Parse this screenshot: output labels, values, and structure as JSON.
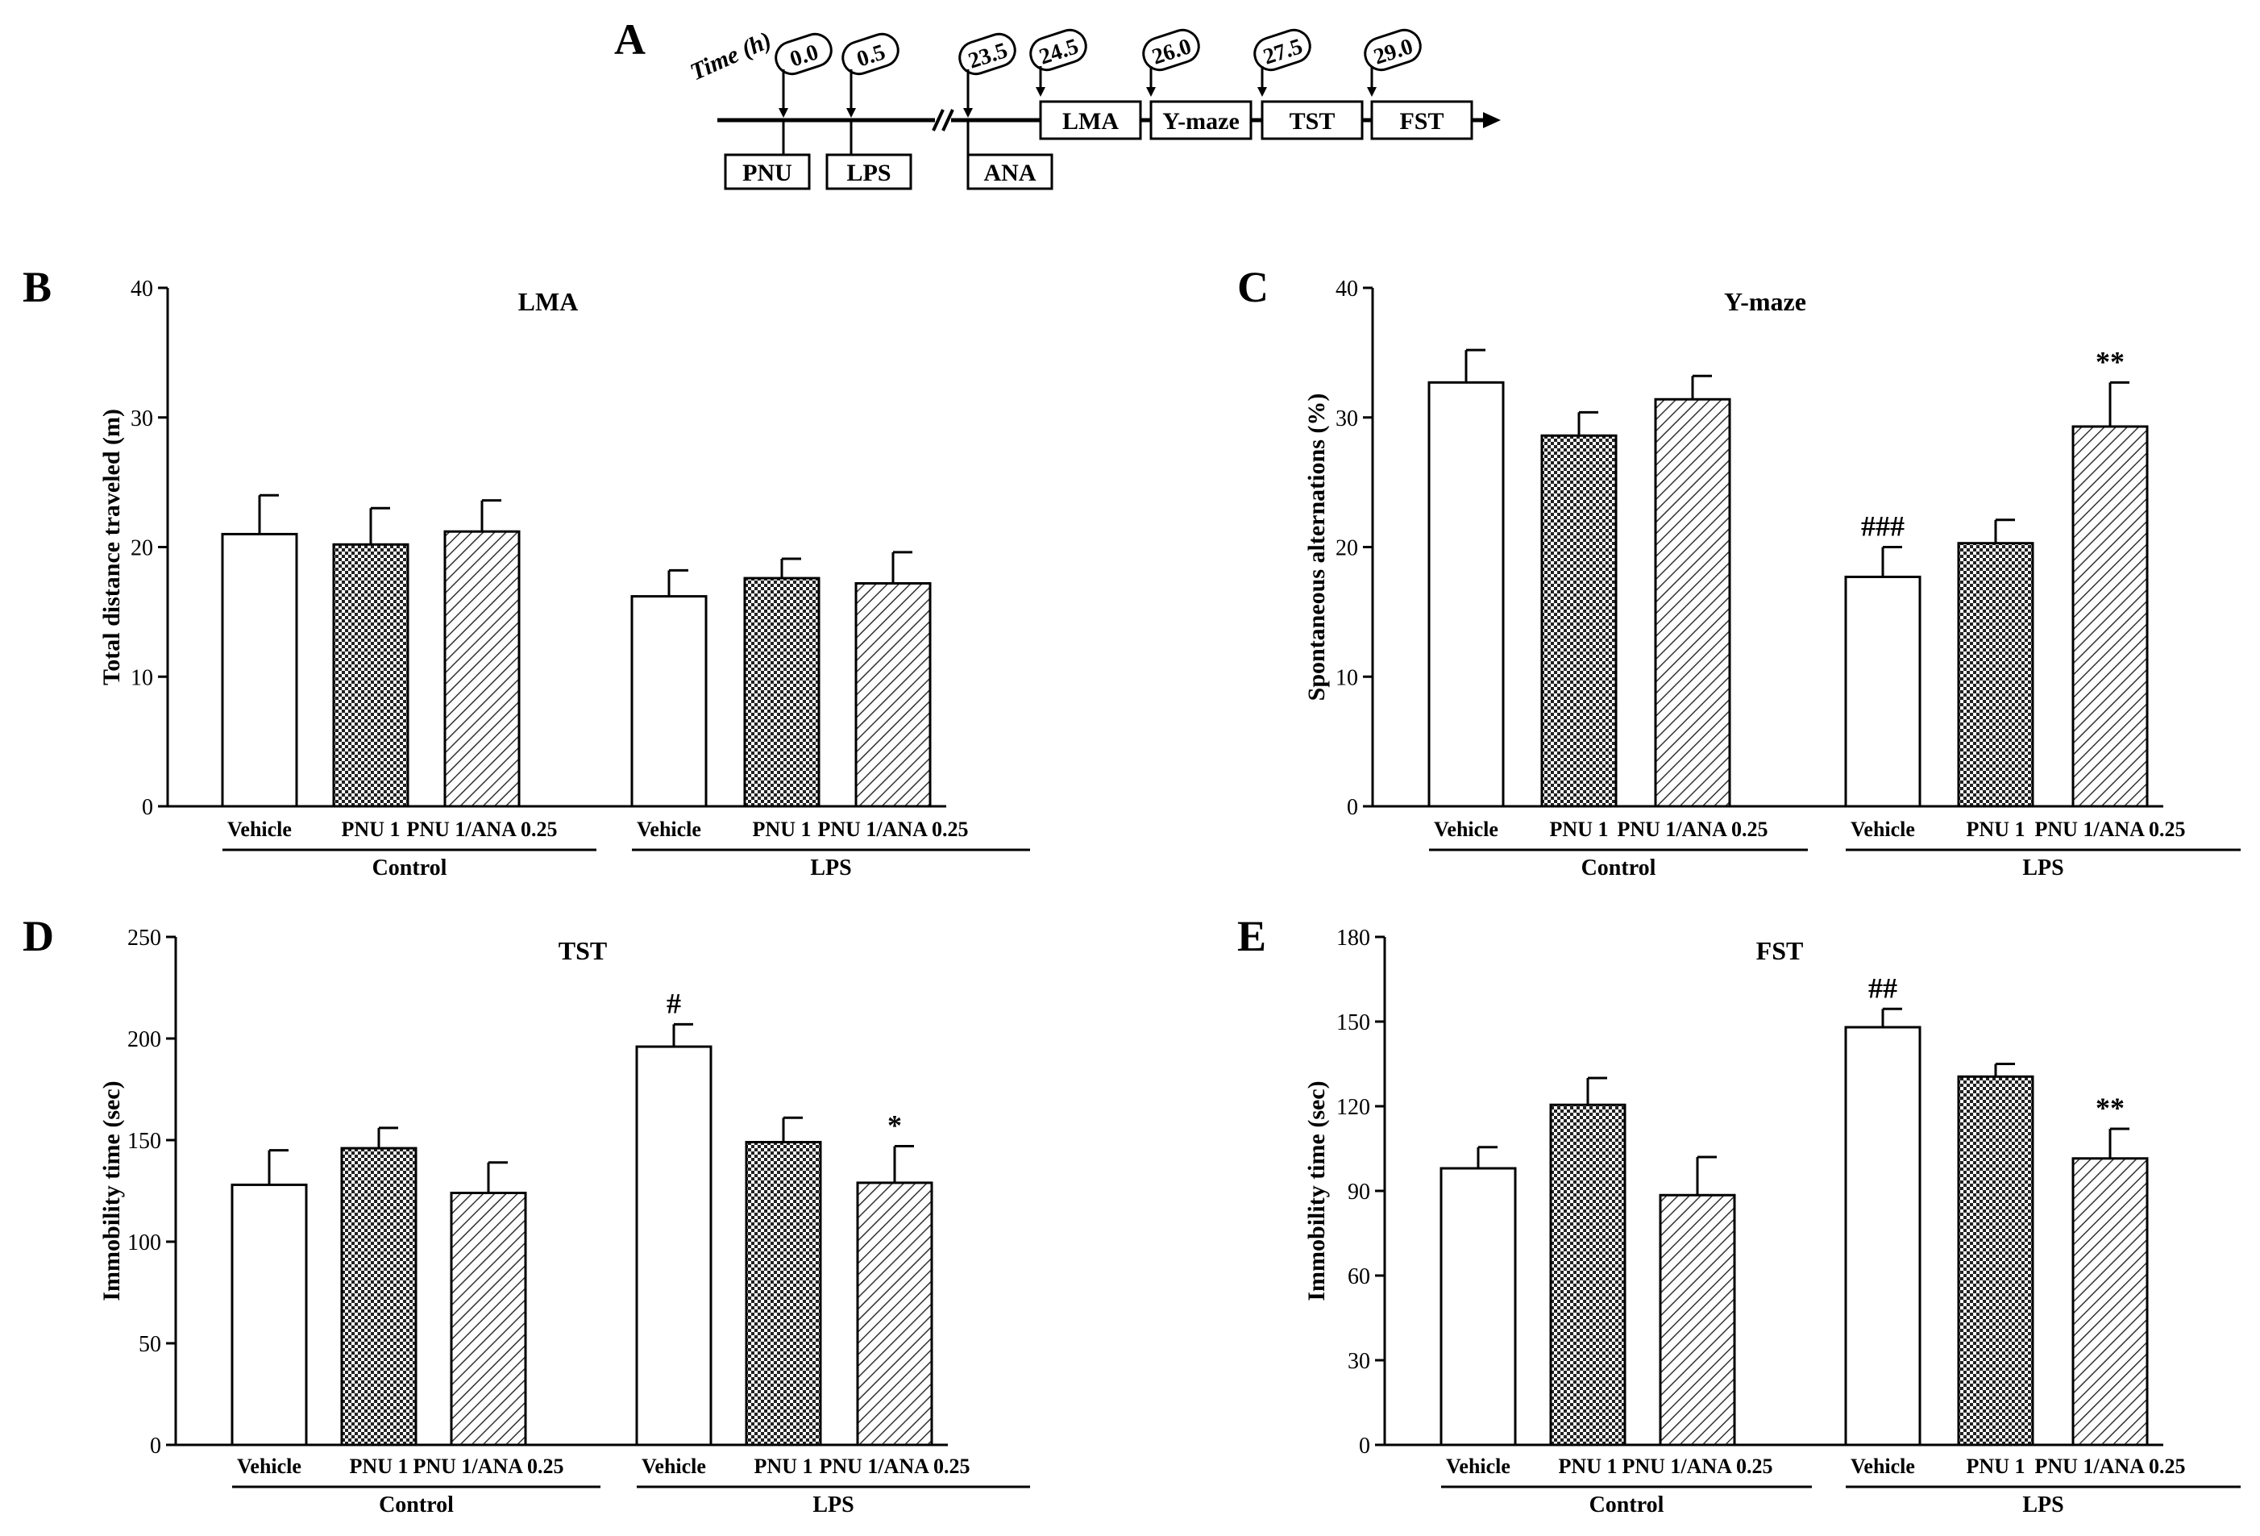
{
  "panel_letters": {
    "a": "A",
    "b": "B",
    "c": "C",
    "d": "D",
    "e": "E"
  },
  "timeline": {
    "time_label": "Time (h)",
    "timepoints": [
      "0.0",
      "0.5",
      "23.5",
      "24.5",
      "26.0",
      "27.5",
      "29.0"
    ],
    "treatments": [
      "PNU",
      "LPS",
      "ANA"
    ],
    "tests": [
      "LMA",
      "Y-maze",
      "TST",
      "FST"
    ]
  },
  "colors": {
    "ink": "#000000",
    "background": "#ffffff"
  },
  "chart_data": [
    {
      "panel": "B",
      "type": "bar",
      "title": "LMA",
      "ylabel": "Total distance traveled (m)",
      "xlabel": "",
      "ylim": [
        0,
        40
      ],
      "yticks": [
        0,
        10,
        20,
        30,
        40
      ],
      "groups": [
        "Control",
        "LPS"
      ],
      "categories": [
        "Vehicle",
        "PNU 1",
        "PNU 1/ANA 0.25"
      ],
      "fills": [
        "open",
        "checkered",
        "hatched"
      ],
      "series": [
        {
          "name": "Control",
          "values": [
            21.0,
            20.2,
            21.2
          ],
          "errors": [
            3.0,
            2.8,
            2.4
          ],
          "annotations": [
            "",
            "",
            ""
          ]
        },
        {
          "name": "LPS",
          "values": [
            16.2,
            17.6,
            17.2
          ],
          "errors": [
            2.0,
            1.5,
            2.4
          ],
          "annotations": [
            "",
            "",
            ""
          ]
        }
      ]
    },
    {
      "panel": "C",
      "type": "bar",
      "title": "Y-maze",
      "ylabel": "Spontaneous alternations (%)",
      "xlabel": "",
      "ylim": [
        0,
        40
      ],
      "yticks": [
        0,
        10,
        20,
        30,
        40
      ],
      "groups": [
        "Control",
        "LPS"
      ],
      "categories": [
        "Vehicle",
        "PNU 1",
        "PNU 1/ANA 0.25"
      ],
      "fills": [
        "open",
        "checkered",
        "hatched"
      ],
      "series": [
        {
          "name": "Control",
          "values": [
            32.7,
            28.6,
            31.4
          ],
          "errors": [
            2.5,
            1.8,
            1.8
          ],
          "annotations": [
            "",
            "",
            ""
          ]
        },
        {
          "name": "LPS",
          "values": [
            17.7,
            20.3,
            29.3
          ],
          "errors": [
            2.3,
            1.8,
            3.4
          ],
          "annotations": [
            "###",
            "",
            "**"
          ]
        }
      ]
    },
    {
      "panel": "D",
      "type": "bar",
      "title": "TST",
      "ylabel": "Immobility time (sec)",
      "xlabel": "",
      "ylim": [
        0,
        250
      ],
      "yticks": [
        0,
        50,
        100,
        150,
        200,
        250
      ],
      "groups": [
        "Control",
        "LPS"
      ],
      "categories": [
        "Vehicle",
        "PNU 1",
        "PNU 1/ANA 0.25"
      ],
      "fills": [
        "open",
        "checkered",
        "hatched"
      ],
      "series": [
        {
          "name": "Control",
          "values": [
            128,
            146,
            124
          ],
          "errors": [
            17,
            10,
            15
          ],
          "annotations": [
            "",
            "",
            ""
          ]
        },
        {
          "name": "LPS",
          "values": [
            196,
            149,
            129
          ],
          "errors": [
            11,
            12,
            18
          ],
          "annotations": [
            "#",
            "",
            "*"
          ]
        }
      ]
    },
    {
      "panel": "E",
      "type": "bar",
      "title": "FST",
      "ylabel": "Immobility time (sec)",
      "xlabel": "",
      "ylim": [
        0,
        180
      ],
      "yticks": [
        0,
        30,
        60,
        90,
        120,
        150,
        180
      ],
      "groups": [
        "Control",
        "LPS"
      ],
      "categories": [
        "Vehicle",
        "PNU 1",
        "PNU 1/ANA 0.25"
      ],
      "fills": [
        "open",
        "checkered",
        "hatched"
      ],
      "series": [
        {
          "name": "Control",
          "values": [
            98,
            120.5,
            88.5
          ],
          "errors": [
            7.5,
            9.5,
            13.5
          ],
          "annotations": [
            "",
            "",
            ""
          ]
        },
        {
          "name": "LPS",
          "values": [
            148,
            130.5,
            101.5
          ],
          "errors": [
            6.5,
            4.5,
            10.5
          ],
          "annotations": [
            "##",
            "",
            "**"
          ]
        }
      ]
    }
  ]
}
